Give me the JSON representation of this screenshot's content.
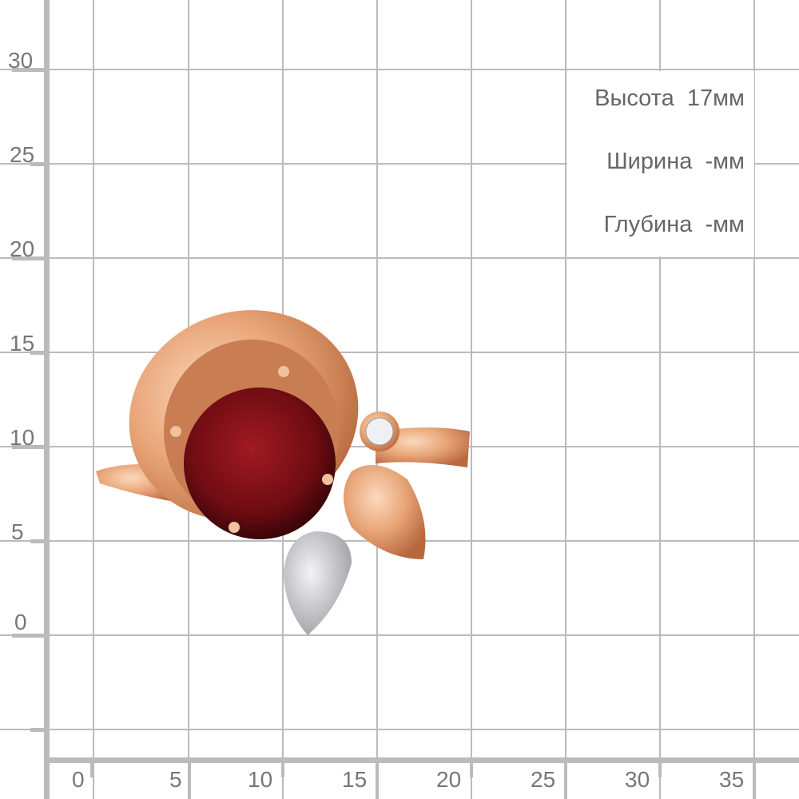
{
  "ruler": {
    "x_ticks": [
      "0",
      "5",
      "10",
      "15",
      "20",
      "25",
      "30",
      "35"
    ],
    "y_ticks": [
      "30",
      "25",
      "20",
      "15",
      "10",
      "5",
      "0"
    ],
    "unit": "mm",
    "grid_color": "#bbbbbb",
    "label_color": "#777777"
  },
  "dimensions": {
    "height": "Высота  17мм",
    "width": "Ширина  -мм",
    "depth": "Глубина  -мм"
  },
  "product": {
    "metal_color": "#e7a47a",
    "stone_color": "#7a0e14"
  }
}
